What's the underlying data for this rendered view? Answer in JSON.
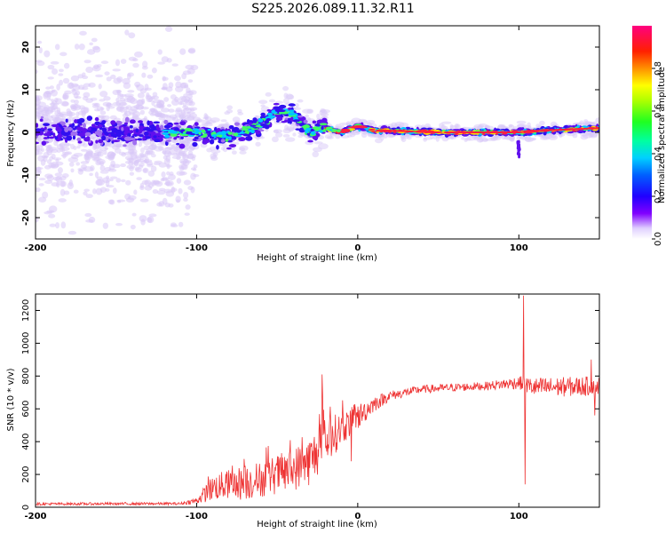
{
  "title": "S225.2026.089.11.32.R11",
  "chart_data": [
    {
      "type": "heatmap",
      "name": "spectrogram",
      "xlabel": "Height of straight line (km)",
      "ylabel": "Frequency (Hz)",
      "xlim": [
        -200,
        150
      ],
      "ylim": [
        -25,
        25
      ],
      "x_ticks": [
        "-200",
        "-100",
        "0",
        "100"
      ],
      "y_ticks": [
        "-20",
        "-10",
        "0",
        "10",
        "20"
      ],
      "colorbar": {
        "label": "Normalized spectral amplitude",
        "range": [
          0,
          1
        ],
        "ticks": [
          "0.0",
          "0.2",
          "0.4",
          "0.6",
          "0.8"
        ]
      },
      "ridge": [
        {
          "x": -200,
          "y": 0
        },
        {
          "x": -150,
          "y": 0
        },
        {
          "x": -100,
          "y": 0
        },
        {
          "x": -80,
          "y": -1
        },
        {
          "x": -60,
          "y": 2
        },
        {
          "x": -50,
          "y": 5
        },
        {
          "x": -40,
          "y": 4
        },
        {
          "x": -30,
          "y": 0
        },
        {
          "x": -20,
          "y": 1
        },
        {
          "x": -10,
          "y": 0
        },
        {
          "x": 0,
          "y": 1.5
        },
        {
          "x": 10,
          "y": 0.5
        },
        {
          "x": 50,
          "y": 0
        },
        {
          "x": 100,
          "y": 0
        },
        {
          "x": 120,
          "y": 0.5
        },
        {
          "x": 150,
          "y": 1
        }
      ]
    },
    {
      "type": "line",
      "name": "snr",
      "xlabel": "Height of straight line (km)",
      "ylabel": "SNR (10 * v/v)",
      "xlim": [
        -200,
        150
      ],
      "ylim": [
        0,
        1300
      ],
      "x_ticks": [
        "-200",
        "-100",
        "0",
        "100"
      ],
      "y_ticks": [
        "0",
        "200",
        "400",
        "600",
        "800",
        "1000",
        "1200"
      ],
      "color": "#ee3333",
      "envelope": [
        {
          "x": -200,
          "y": 20,
          "amp": 8
        },
        {
          "x": -110,
          "y": 22,
          "amp": 8
        },
        {
          "x": -100,
          "y": 40,
          "amp": 20
        },
        {
          "x": -90,
          "y": 120,
          "amp": 80
        },
        {
          "x": -80,
          "y": 140,
          "amp": 90
        },
        {
          "x": -70,
          "y": 150,
          "amp": 110
        },
        {
          "x": -60,
          "y": 170,
          "amp": 110
        },
        {
          "x": -50,
          "y": 200,
          "amp": 120
        },
        {
          "x": -40,
          "y": 230,
          "amp": 130
        },
        {
          "x": -30,
          "y": 280,
          "amp": 150
        },
        {
          "x": -20,
          "y": 400,
          "amp": 150
        },
        {
          "x": -10,
          "y": 480,
          "amp": 100
        },
        {
          "x": 0,
          "y": 550,
          "amp": 80
        },
        {
          "x": 10,
          "y": 630,
          "amp": 50
        },
        {
          "x": 20,
          "y": 680,
          "amp": 30
        },
        {
          "x": 40,
          "y": 720,
          "amp": 25
        },
        {
          "x": 80,
          "y": 740,
          "amp": 25
        },
        {
          "x": 100,
          "y": 760,
          "amp": 40
        },
        {
          "x": 110,
          "y": 730,
          "amp": 60
        },
        {
          "x": 150,
          "y": 740,
          "amp": 60
        }
      ],
      "spikes": [
        {
          "x": -22,
          "y": 810
        },
        {
          "x": -4,
          "y": 280
        },
        {
          "x": 103,
          "y": 1290
        },
        {
          "x": 104,
          "y": 140
        },
        {
          "x": 145,
          "y": 900
        },
        {
          "x": 147,
          "y": 560
        }
      ]
    }
  ]
}
